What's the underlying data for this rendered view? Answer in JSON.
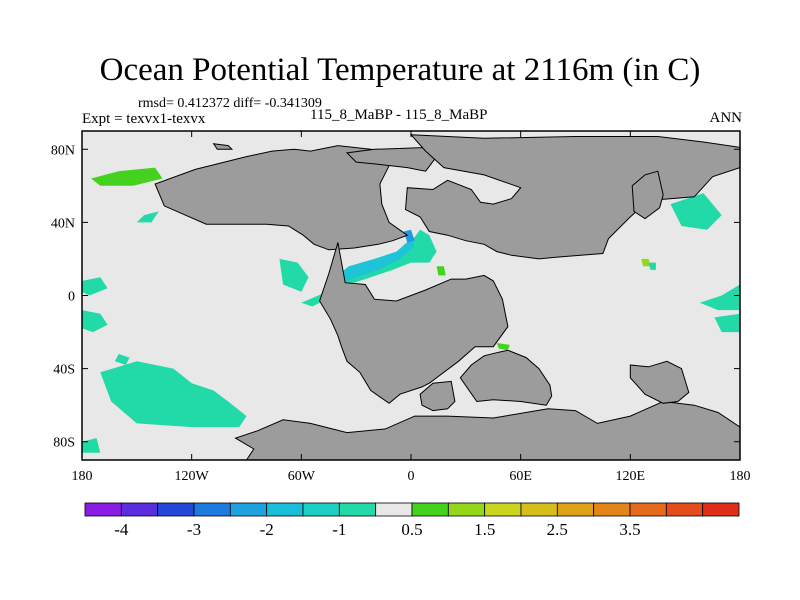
{
  "header": {
    "title": "Ocean Potential Temperature at 2116m (in C)",
    "stats": "rmsd= 0.412372 diff= -0.341309",
    "expt": "Expt = texvx1-texvx",
    "case": "115_8_MaBP - 115_8_MaBP",
    "season": "ANN"
  },
  "chart_data": {
    "type": "heatmap",
    "title": "Ocean Potential Temperature at 2116m (in C)",
    "xlabel": "",
    "ylabel": "",
    "xlim": [
      -180,
      180
    ],
    "ylim": [
      -90,
      90
    ],
    "x_ticks": [
      {
        "value": -180,
        "label": "180"
      },
      {
        "value": -120,
        "label": "120W"
      },
      {
        "value": -60,
        "label": "60W"
      },
      {
        "value": 0,
        "label": "0"
      },
      {
        "value": 60,
        "label": "60E"
      },
      {
        "value": 120,
        "label": "120E"
      },
      {
        "value": 180,
        "label": "180"
      }
    ],
    "y_ticks": [
      {
        "value": 80,
        "label": "80N"
      },
      {
        "value": 40,
        "label": "40N"
      },
      {
        "value": 0,
        "label": "0"
      },
      {
        "value": -40,
        "label": "40S"
      },
      {
        "value": -80,
        "label": "80S"
      }
    ],
    "colorbar": {
      "colors": [
        "#8b1ce6",
        "#5a2de0",
        "#2347d8",
        "#1d7be0",
        "#1ea3e0",
        "#19bfd8",
        "#1dcfc4",
        "#22d9a8",
        "#e8e8e8",
        "#44d21e",
        "#93d61a",
        "#c9d41a",
        "#d6be18",
        "#dea415",
        "#e2861a",
        "#e46a1c",
        "#e44c1c",
        "#e02e1a"
      ],
      "tick_labels": [
        {
          "after_index": 0,
          "label": "-4"
        },
        {
          "after_index": 2,
          "label": "-3"
        },
        {
          "after_index": 4,
          "label": "-2"
        },
        {
          "after_index": 6,
          "label": "-1"
        },
        {
          "after_index": 8,
          "label": "0.5"
        },
        {
          "after_index": 10,
          "label": "1.5"
        },
        {
          "after_index": 12,
          "label": "2.5"
        },
        {
          "after_index": 14,
          "label": "3.5"
        }
      ]
    },
    "colors": {
      "land": "#9c9c9c",
      "ocean_zero": "#e8e8e8",
      "cool_small": "#22d9a8",
      "cool_mid": "#1ec4d6",
      "cool_strong": "#1d9ae0",
      "warm_small": "#44d21e",
      "warm_mid": "#93d61a"
    },
    "regions": [
      {
        "kind": "land",
        "name": "north-america",
        "lon": [
          -64,
          -55,
          -40,
          -22,
          -8,
          -12,
          -17,
          -16,
          -12,
          -2,
          -10,
          -18,
          -31,
          -45,
          -53,
          -59,
          -67,
          -79,
          -112,
          -135,
          -140,
          -118,
          -90,
          -76
        ],
        "lat": [
          80,
          79,
          82,
          80,
          77,
          71,
          61,
          50,
          40,
          33,
          30,
          28,
          26,
          25,
          28,
          33,
          38,
          39,
          39,
          49,
          61,
          69,
          76,
          79
        ]
      },
      {
        "kind": "land",
        "name": "greenland-bridge",
        "lon": [
          -35,
          -20,
          10,
          14,
          8,
          -2,
          -20,
          -30
        ],
        "lat": [
          78,
          80,
          81,
          76,
          68,
          70,
          72,
          73
        ]
      },
      {
        "kind": "land",
        "name": "eurasia",
        "lon": [
          0,
          40,
          90,
          135,
          160,
          180,
          180,
          165,
          155,
          130,
          120,
          108,
          105,
          80,
          70,
          55,
          47,
          40,
          30,
          20,
          10,
          5,
          -3,
          -2,
          12,
          20,
          33,
          38,
          45,
          55,
          60,
          40,
          18,
          8
        ],
        "lat": [
          88,
          86,
          87,
          87,
          84,
          81,
          70,
          65,
          54,
          52,
          43,
          31,
          23,
          21,
          20,
          22,
          24,
          28,
          30,
          33,
          35,
          43,
          47,
          59,
          58,
          63,
          58,
          51,
          50,
          53,
          59,
          66,
          70,
          79
        ]
      },
      {
        "kind": "land",
        "name": "south-america-africa",
        "lon": [
          -40,
          -45,
          -50,
          -44,
          -40,
          -38,
          -35,
          -28,
          -22,
          -12,
          -6,
          6,
          10,
          26,
          35,
          45,
          53,
          50,
          45,
          40,
          30,
          22,
          8,
          -8,
          -20,
          -25,
          -36
        ],
        "lat": [
          29,
          12,
          -3,
          -13,
          -22,
          -28,
          -36,
          -42,
          -52,
          -59,
          -54,
          -50,
          -48,
          -36,
          -28,
          -28,
          -17,
          -2,
          8,
          11,
          9,
          9,
          3,
          -3,
          -2,
          6,
          7
        ]
      },
      {
        "kind": "land",
        "name": "india",
        "lon": [
          27,
          33,
          40,
          48,
          53,
          63,
          70,
          76,
          77,
          74,
          60,
          45,
          36
        ],
        "lat": [
          -45,
          -38,
          -33,
          -31,
          -30,
          -34,
          -40,
          -49,
          -55,
          -60,
          -58,
          -57,
          -58
        ]
      },
      {
        "kind": "land",
        "name": "madagascar",
        "lon": [
          5,
          12,
          22,
          24,
          20,
          12,
          6
        ],
        "lat": [
          -54,
          -48,
          -47,
          -58,
          -62,
          -63,
          -60
        ]
      },
      {
        "kind": "land",
        "name": "antarctica",
        "lon": [
          -84,
          -70,
          -55,
          -35,
          -14,
          2,
          20,
          45,
          75,
          90,
          102,
          120,
          138,
          155,
          168,
          180,
          180,
          -90,
          -86,
          -96,
          -84
        ],
        "lat": [
          -74,
          -68,
          -70,
          -75,
          -73,
          -66,
          -66,
          -67,
          -62,
          -63,
          -70,
          -66,
          -58,
          -60,
          -64,
          -72,
          -90,
          -90,
          -84,
          -78,
          -74
        ]
      },
      {
        "kind": "land",
        "name": "australia",
        "lon": [
          120,
          130,
          140,
          148,
          152,
          146,
          138,
          128,
          120
        ],
        "lat": [
          -38,
          -39,
          -36,
          -40,
          -53,
          -58,
          -59,
          -54,
          -45
        ]
      },
      {
        "kind": "land",
        "name": "east-asia-peninsula",
        "lon": [
          121,
          128,
          135,
          138,
          136,
          128,
          122
        ],
        "lat": [
          60,
          66,
          68,
          55,
          48,
          42,
          46
        ]
      },
      {
        "kind": "land",
        "name": "north-pacific-island",
        "lon": [
          -108,
          -100,
          -98,
          -106
        ],
        "lat": [
          83,
          82,
          80,
          80
        ]
      },
      {
        "kind": "anomaly",
        "level": "cool_small",
        "name": "atlantic-band",
        "lon": [
          -46,
          -36,
          -22,
          -12,
          -4,
          2,
          5,
          10,
          14,
          10,
          0,
          -10,
          -22,
          -34,
          -42,
          -54,
          -60
        ],
        "lat": [
          2,
          12,
          18,
          20,
          26,
          32,
          36,
          33,
          24,
          18,
          18,
          14,
          10,
          6,
          0,
          -6,
          -4
        ]
      },
      {
        "kind": "anomaly",
        "level": "cool_mid",
        "name": "atlantic-core",
        "lon": [
          -44,
          -34,
          -20,
          -8,
          0,
          2,
          -6,
          -18,
          -30,
          -40
        ],
        "lat": [
          8,
          16,
          20,
          24,
          31,
          27,
          20,
          14,
          10,
          6
        ]
      },
      {
        "kind": "anomaly",
        "level": "cool_strong",
        "name": "atlantic-spot",
        "lon": [
          -4,
          0,
          2,
          -2
        ],
        "lat": [
          35,
          36,
          30,
          29
        ]
      },
      {
        "kind": "anomaly",
        "level": "cool_small",
        "name": "east-atlantic-edge",
        "lon": [
          -72,
          -62,
          -56,
          -60,
          -70
        ],
        "lat": [
          20,
          18,
          10,
          2,
          6
        ]
      },
      {
        "kind": "anomaly",
        "level": "cool_small",
        "name": "south-pacific-large",
        "lon": [
          -170,
          -150,
          -130,
          -120,
          -108,
          -100,
          -90,
          -94,
          -120,
          -150,
          -164
        ],
        "lat": [
          -42,
          -36,
          -40,
          -48,
          -52,
          -58,
          -66,
          -72,
          -72,
          -70,
          -58
        ]
      },
      {
        "kind": "anomaly",
        "level": "cool_small",
        "name": "pacific-west-edge-1",
        "lon": [
          -180,
          -170,
          -166,
          -174,
          -180
        ],
        "lat": [
          -8,
          -10,
          -16,
          -20,
          -18
        ]
      },
      {
        "kind": "anomaly",
        "level": "cool_small",
        "name": "pacific-west-edge-2",
        "lon": [
          -180,
          -170,
          -166,
          -176,
          -180
        ],
        "lat": [
          8,
          10,
          4,
          0,
          2
        ]
      },
      {
        "kind": "anomaly",
        "level": "cool_small",
        "name": "pacific-small-1",
        "lon": [
          -160,
          -154,
          -156,
          -162
        ],
        "lat": [
          -32,
          -34,
          -38,
          -36
        ]
      },
      {
        "kind": "anomaly",
        "level": "cool_small",
        "name": "pacific-small-2",
        "lon": [
          -146,
          -138,
          -142,
          -150
        ],
        "lat": [
          44,
          46,
          40,
          40
        ]
      },
      {
        "kind": "anomaly",
        "level": "cool_small",
        "name": "pacific-sw-corner",
        "lon": [
          -180,
          -172,
          -170,
          -180
        ],
        "lat": [
          -80,
          -78,
          -86,
          -86
        ]
      },
      {
        "kind": "anomaly",
        "level": "cool_small",
        "name": "pacific-east-1",
        "lon": [
          142,
          160,
          170,
          162,
          148
        ],
        "lat": [
          50,
          56,
          44,
          36,
          38
        ]
      },
      {
        "kind": "anomaly",
        "level": "cool_small",
        "name": "pacific-east-2",
        "lon": [
          158,
          170,
          180,
          180,
          168
        ],
        "lat": [
          -4,
          0,
          6,
          -8,
          -8
        ]
      },
      {
        "kind": "anomaly",
        "level": "cool_small",
        "name": "pacific-east-3",
        "lon": [
          166,
          180,
          180,
          170
        ],
        "lat": [
          -12,
          -10,
          -20,
          -20
        ]
      },
      {
        "kind": "anomaly",
        "level": "cool_small",
        "name": "pacific-se-corner",
        "lon": [
          160,
          180,
          180,
          166
        ],
        "lat": [
          -78,
          -76,
          -86,
          -84
        ]
      },
      {
        "kind": "anomaly",
        "level": "cool_small",
        "name": "indian-spot",
        "lon": [
          9,
          16,
          18,
          11
        ],
        "lat": [
          -23,
          -22,
          -27,
          -27
        ]
      },
      {
        "kind": "anomaly",
        "level": "warm_small",
        "name": "north-pacific-warm",
        "lon": [
          -175,
          -160,
          -140,
          -136,
          -152,
          -170
        ],
        "lat": [
          64,
          68,
          70,
          64,
          60,
          60
        ]
      },
      {
        "kind": "anomaly",
        "level": "warm_small",
        "name": "tethys-warm",
        "lon": [
          14,
          18,
          19,
          15
        ],
        "lat": [
          16,
          16,
          11,
          11
        ]
      },
      {
        "kind": "anomaly",
        "level": "warm_small",
        "name": "indian-warm",
        "lon": [
          47,
          54,
          53,
          48
        ],
        "lat": [
          -26,
          -27,
          -30,
          -29
        ]
      },
      {
        "kind": "anomaly",
        "level": "warm_mid",
        "name": "east-asia-warm",
        "lon": [
          126,
          130,
          131,
          127
        ],
        "lat": [
          20,
          20,
          16,
          16
        ]
      },
      {
        "kind": "anomaly",
        "level": "cool_small",
        "name": "east-asia-cool",
        "lon": [
          130,
          134,
          134,
          131
        ],
        "lat": [
          18,
          18,
          14,
          14
        ]
      }
    ]
  }
}
